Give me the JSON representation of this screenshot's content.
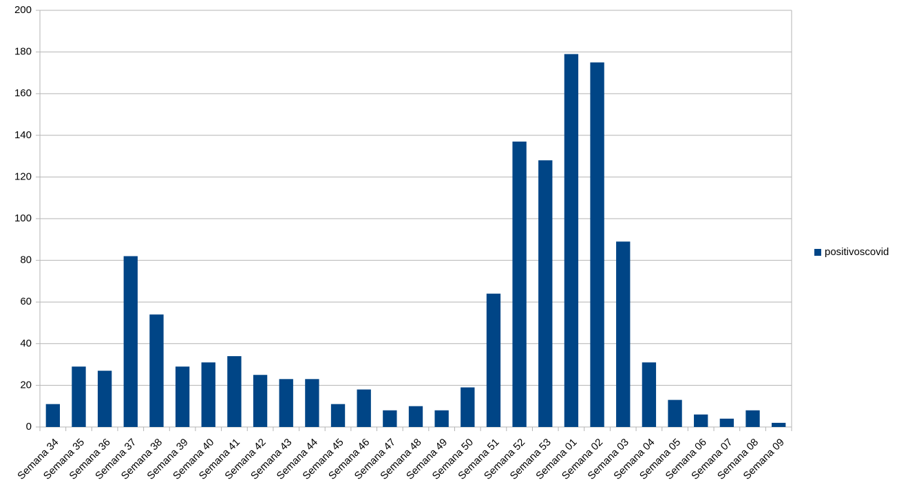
{
  "chart_data": {
    "type": "bar",
    "categories": [
      "Semana 34",
      "Semana 35",
      "Semana 36",
      "Semana 37",
      "Semana 38",
      "Semana 39",
      "Semana 40",
      "Semana 41",
      "Semana 42",
      "Semana 43",
      "Semana 44",
      "Semana 45",
      "Semana 46",
      "Semana 47",
      "Semana 48",
      "Semana 49",
      "Semana 50",
      "Semana 51",
      "Semana 52",
      "Semana 53",
      "Semana 01",
      "Semana 02",
      "Semana 03",
      "Semana 04",
      "Semana 05",
      "Semana 06",
      "Semana 07",
      "Semana 08",
      "Semana 09"
    ],
    "series": [
      {
        "name": "positivoscovid",
        "color": "#004586",
        "values": [
          11,
          29,
          27,
          82,
          54,
          29,
          31,
          34,
          25,
          23,
          23,
          11,
          18,
          8,
          10,
          8,
          19,
          64,
          137,
          128,
          179,
          175,
          89,
          31,
          13,
          6,
          4,
          8,
          2
        ]
      }
    ],
    "ylim": [
      0,
      200
    ],
    "yticks": [
      0,
      20,
      40,
      60,
      80,
      100,
      120,
      140,
      160,
      180,
      200
    ],
    "grid": true,
    "legend": "right"
  }
}
